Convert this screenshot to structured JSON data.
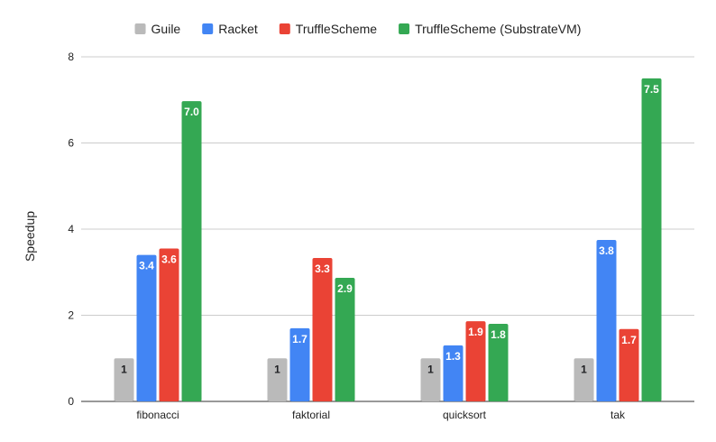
{
  "chart_data": {
    "type": "bar",
    "title": "",
    "xlabel": "",
    "ylabel": "Speedup",
    "ylim": [
      0,
      8
    ],
    "yticks": [
      "0",
      "2",
      "4",
      "6",
      "8"
    ],
    "grid": true,
    "legend_position": "top",
    "categories": [
      "fibonacci",
      "faktorial",
      "quicksort",
      "tak"
    ],
    "series": [
      {
        "name": "Guile",
        "color": "#bababa",
        "label_color": "#202124",
        "values": [
          1,
          1,
          1,
          1
        ],
        "labels": [
          "1",
          "1",
          "1",
          "1"
        ]
      },
      {
        "name": "Racket",
        "color": "#4285f4",
        "label_color": "#ffffff",
        "values": [
          3.4,
          1.7,
          1.3,
          3.75
        ],
        "labels": [
          "3.4",
          "1.7",
          "1.3",
          "3.8"
        ]
      },
      {
        "name": "TruffleScheme",
        "color": "#ea4335",
        "label_color": "#ffffff",
        "values": [
          3.55,
          3.33,
          1.86,
          1.68
        ],
        "labels": [
          "3.6",
          "3.3",
          "1.9",
          "1.7"
        ]
      },
      {
        "name": "TruffleScheme (SubstrateVM)",
        "color": "#34a853",
        "label_color": "#ffffff",
        "values": [
          6.97,
          2.87,
          1.8,
          7.5
        ],
        "labels": [
          "7.0",
          "2.9",
          "1.8",
          "7.5"
        ]
      }
    ]
  }
}
